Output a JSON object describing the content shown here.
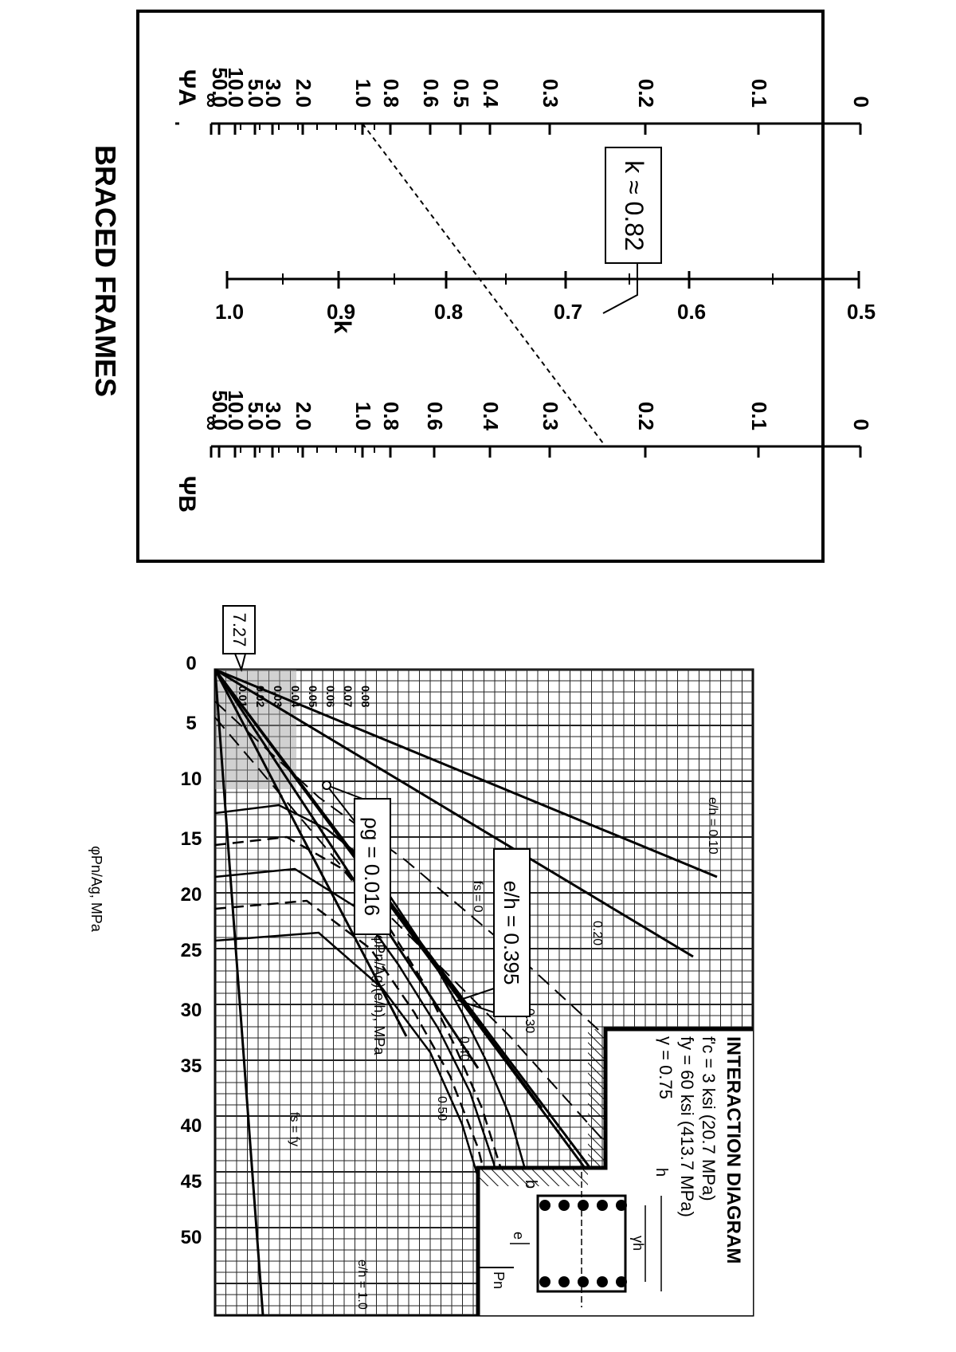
{
  "nomograph": {
    "title": "BRACED FRAMES",
    "psiA_label": "ΨA",
    "k_label": "k",
    "psiB_label": "ΨB",
    "psi_ticks": [
      "∞",
      "50.0",
      "10.0",
      "5.0",
      "3.0",
      "2.0",
      "1.0",
      "0.8",
      "0.6",
      "0.5",
      "0.4",
      "0.3",
      "0.2",
      "0.1",
      "0"
    ],
    "psi_ticks_b": [
      "∞",
      "50.0",
      "10.0",
      "5.0",
      "3.0",
      "2.0",
      "1.0",
      "0.8",
      "0.6",
      "0.4",
      "0.3",
      "0.2",
      "0.1",
      "0"
    ],
    "k_ticks": [
      "1.0",
      "0.9",
      "0.8",
      "0.7",
      "0.6",
      "0.5"
    ],
    "k_callout": "k ≈ 0.82"
  },
  "interaction": {
    "title": "INTERACTION DIAGRAM",
    "prop_fc": "f'c = 3 ksi (20.7 MPa)",
    "prop_fy": "fy = 60 ksi (413.7 MPa)",
    "prop_gamma": "γ = 0.75",
    "section_b": "b",
    "section_h": "h",
    "section_gh": "γh",
    "section_e": "e",
    "section_pn": "Pn",
    "y_axis_label": "φPn/Ag, MPa",
    "x_axis_label": "(φPn/Ag)(e/h), MPa",
    "y_ticks": [
      "50",
      "45",
      "40",
      "35",
      "30",
      "25",
      "20",
      "15",
      "10",
      "5",
      "0"
    ],
    "y_callout": "7.27",
    "rho_labels": [
      "0.01",
      "0.02",
      "0.03",
      "0.04",
      "0.05",
      "0.06",
      "0.07",
      "0.08"
    ],
    "rho_prefix": "ρg =",
    "eh_labels": [
      "e/h = 0.10",
      "0.20",
      "0.30",
      "0.40",
      "0.50",
      "e/h = 1.0"
    ],
    "fs_zero": "fs = 0",
    "fs_fy": "fs = fy",
    "callout_rho": "ρg = 0.016",
    "callout_eh": "e/h = 0.395"
  }
}
